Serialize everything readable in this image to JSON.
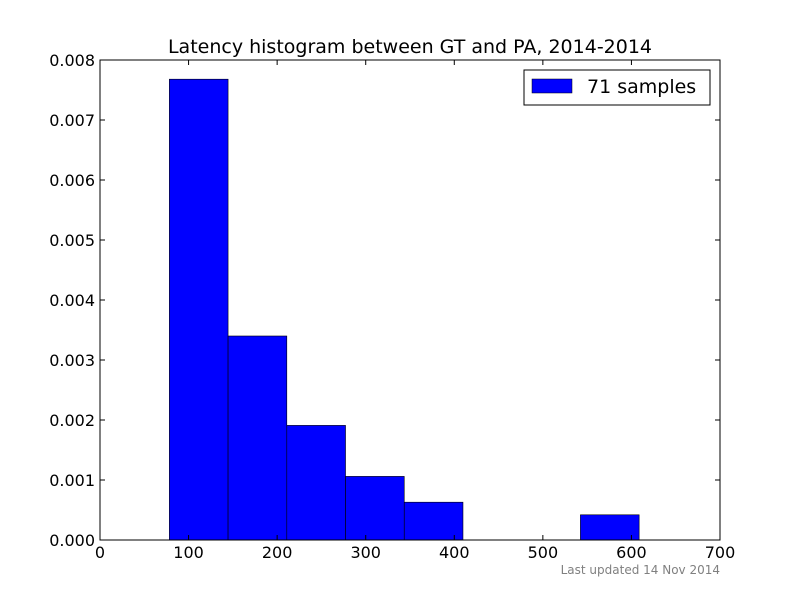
{
  "chart_data": {
    "type": "bar",
    "title": "Latency histogram between GT and PA, 2014-2014",
    "xlabel": "",
    "ylabel": "",
    "xlim": [
      0,
      700
    ],
    "ylim": [
      0,
      0.008
    ],
    "x_ticks": [
      "0",
      "100",
      "200",
      "300",
      "400",
      "500",
      "600",
      "700"
    ],
    "y_ticks": [
      "0.000",
      "0.001",
      "0.002",
      "0.003",
      "0.004",
      "0.005",
      "0.006",
      "0.007",
      "0.008"
    ],
    "bins": [
      {
        "start": 78.3,
        "end": 144.6,
        "density": 0.00768
      },
      {
        "start": 144.6,
        "end": 210.9,
        "density": 0.0034
      },
      {
        "start": 210.9,
        "end": 277.2,
        "density": 0.00191
      },
      {
        "start": 277.2,
        "end": 343.5,
        "density": 0.00106
      },
      {
        "start": 343.5,
        "end": 409.8,
        "density": 0.00063
      },
      {
        "start": 409.8,
        "end": 476.1,
        "density": 0
      },
      {
        "start": 476.1,
        "end": 542.4,
        "density": 0
      },
      {
        "start": 542.4,
        "end": 608.7,
        "density": 0.00042
      }
    ],
    "series": [
      {
        "name": "71 samples",
        "color": "#0000ff"
      }
    ],
    "legend": "top-right",
    "grid": false,
    "footnote": "Last updated 14 Nov 2014"
  }
}
